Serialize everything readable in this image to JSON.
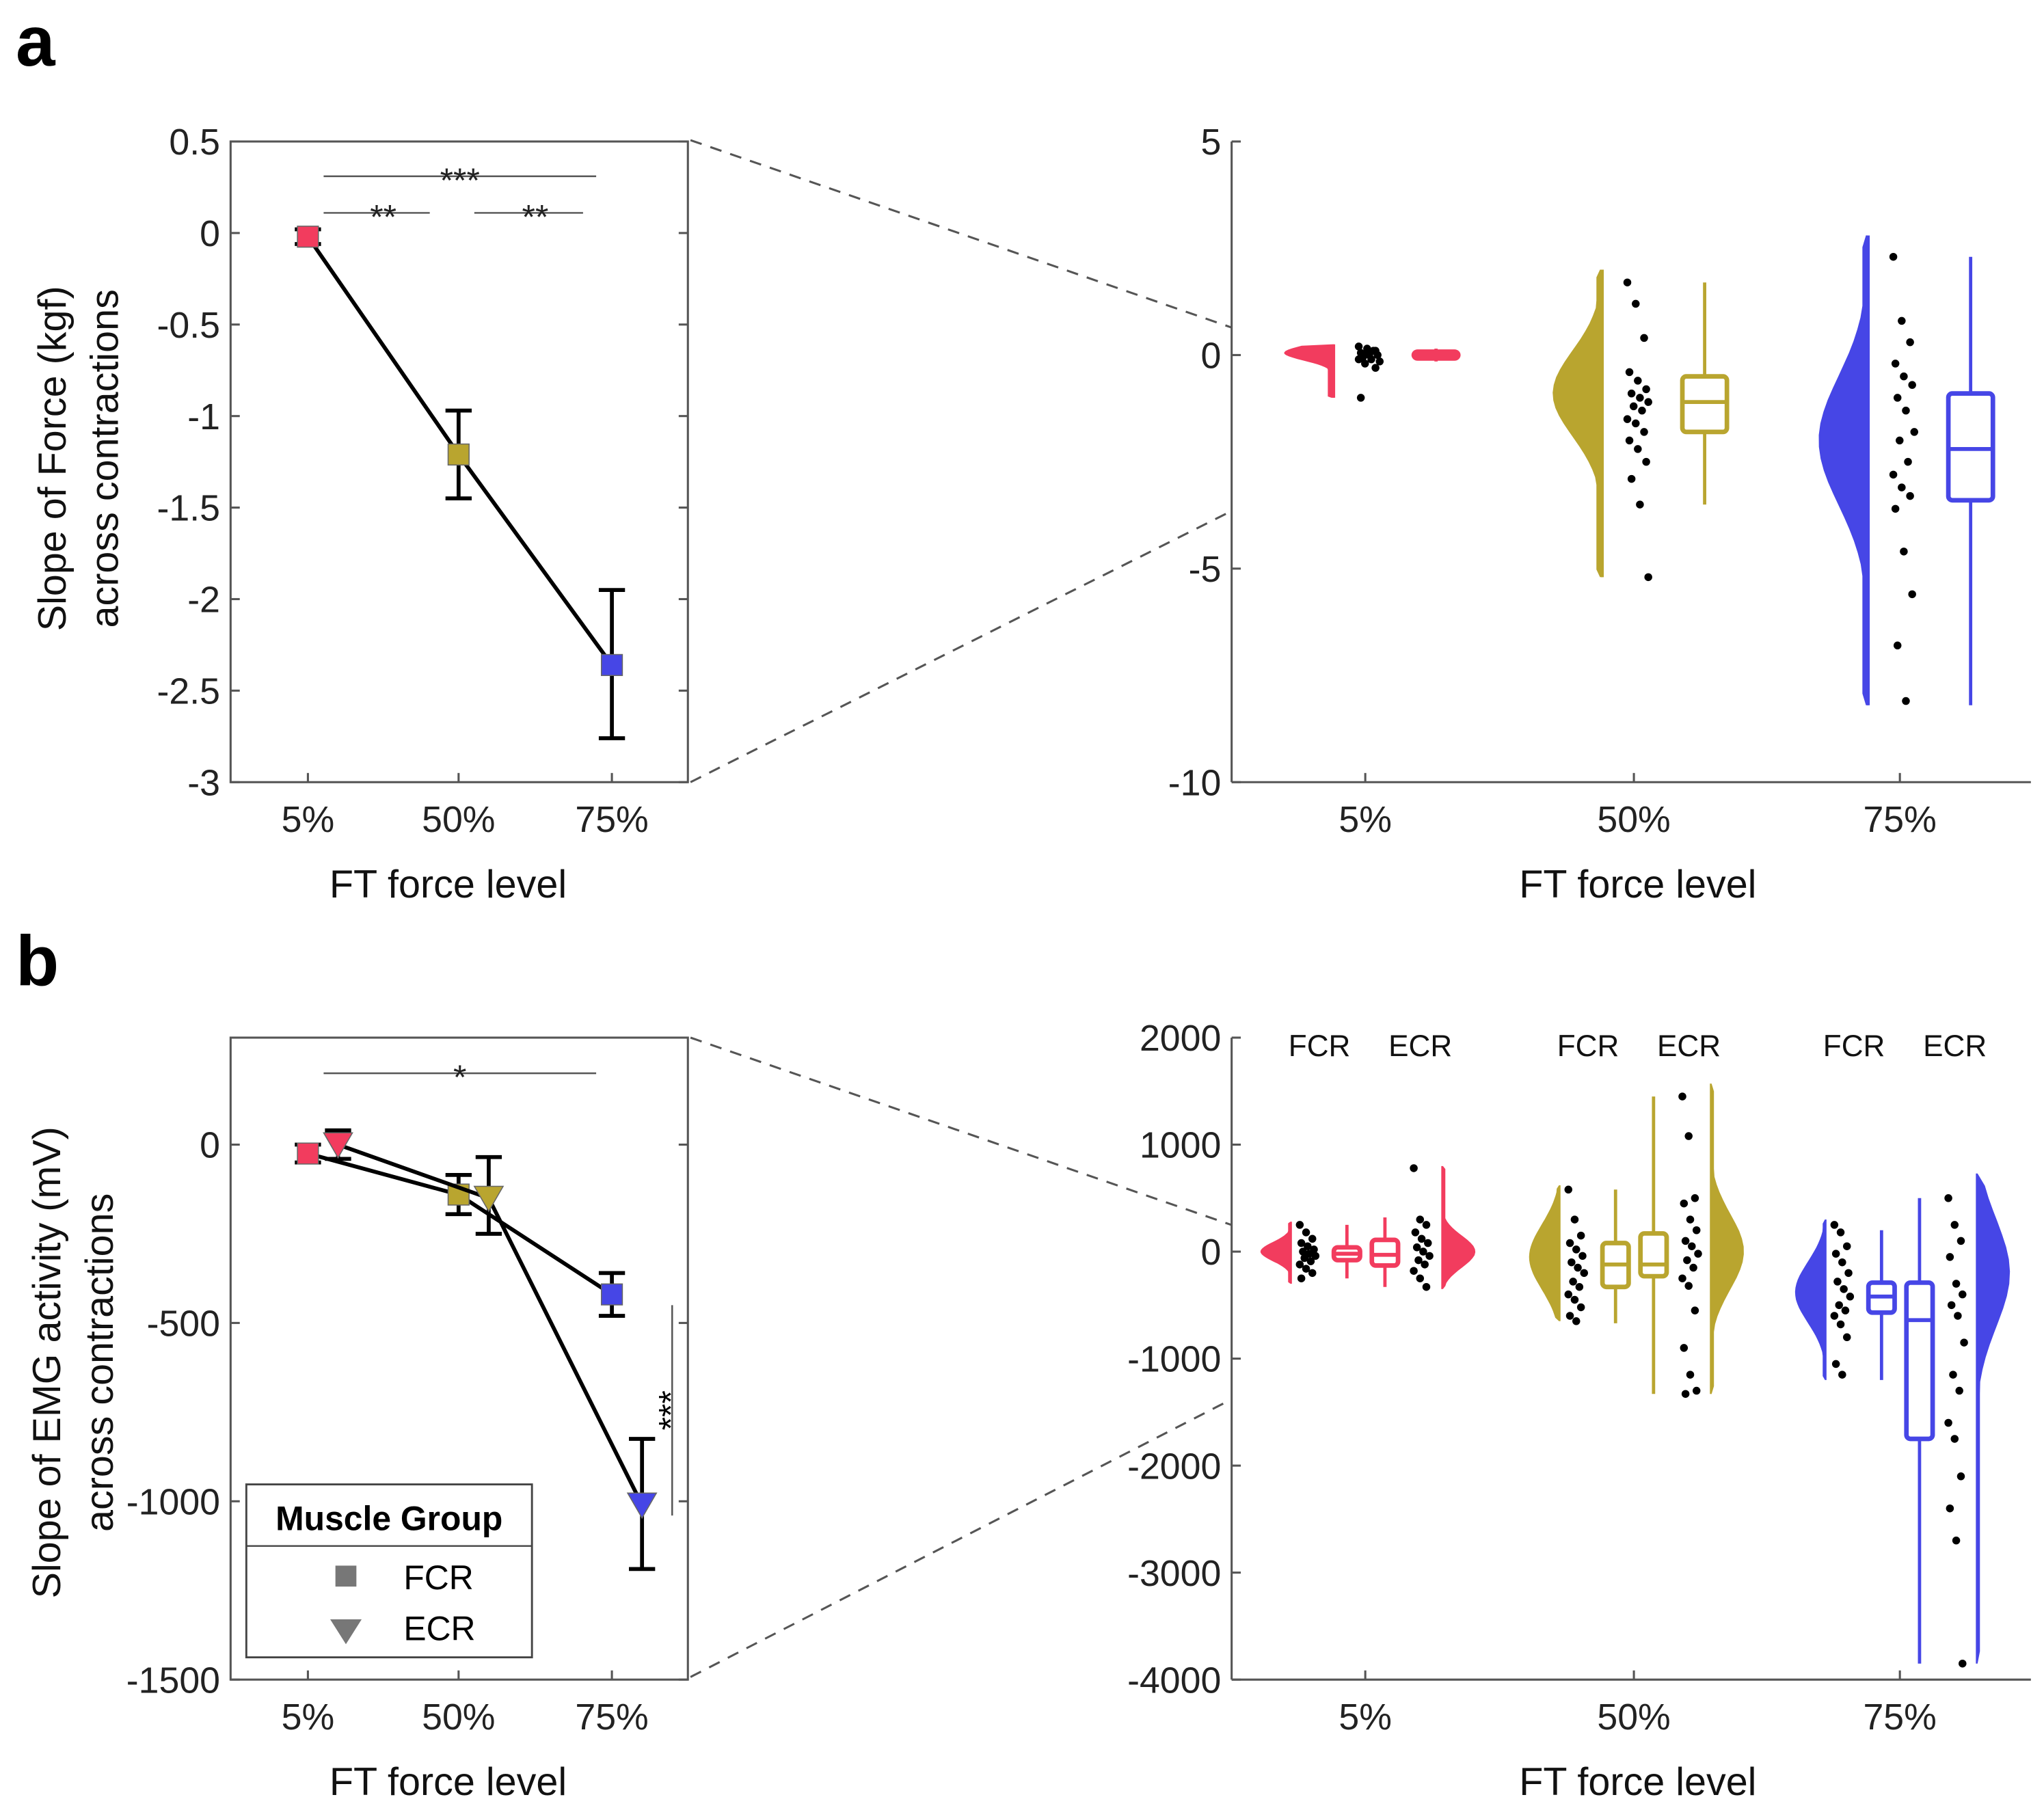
{
  "panels": {
    "a": "a",
    "b": "b"
  },
  "colors": {
    "5%": "#f23c5e",
    "50%": "#b9a52f",
    "75%": "#4646e6",
    "line": "#000000",
    "axis": "#555555"
  },
  "chart_data": [
    {
      "id": "a-left",
      "type": "line",
      "ylabel": [
        "Slope of Force (kgf)",
        "across contractions"
      ],
      "xlabel": "FT force level",
      "categories": [
        "5%",
        "50%",
        "75%"
      ],
      "ylim": [
        -3,
        0.5
      ],
      "yticks": [
        0.5,
        0,
        -0.5,
        -1,
        -1.5,
        -2,
        -2.5,
        -3
      ],
      "ytick_labels": [
        "0.5",
        "0",
        "-0.5",
        "-1",
        "-1.5",
        "-2",
        "-2.5",
        "-3"
      ],
      "series": [
        {
          "name": "Force",
          "marker": "square",
          "values": [
            -0.02,
            -1.21,
            -2.36
          ],
          "err_low": [
            -0.06,
            -1.45,
            -2.76
          ],
          "err_high": [
            0.02,
            -0.97,
            -1.95
          ]
        }
      ],
      "significance": [
        {
          "from": 0,
          "to": 2,
          "y": 0.31,
          "label": "***"
        },
        {
          "from": 0,
          "to": 1,
          "y": 0.11,
          "label": "**"
        },
        {
          "from": 1,
          "to": 2,
          "y": 0.11,
          "label": "**"
        }
      ]
    },
    {
      "id": "a-right",
      "type": "raincloud",
      "xlabel": "FT force level",
      "categories": [
        "5%",
        "50%",
        "75%"
      ],
      "ylim": [
        -10,
        5
      ],
      "yticks": [
        5,
        0,
        -5,
        -10
      ],
      "ytick_labels": [
        "5",
        "0",
        "-5",
        "-10"
      ],
      "groups": [
        {
          "cat": 0,
          "violin": [
            -1.0,
            0.25,
            0.05,
            0.18
          ],
          "box": {
            "min": -0.15,
            "q1": -0.08,
            "median": 0,
            "q3": 0.08,
            "max": 0.15
          },
          "points": [
            0.2,
            0.15,
            0.1,
            0.05,
            0,
            0,
            -0.05,
            -0.1,
            -0.15,
            -0.2,
            0.1,
            -0.1,
            0.05,
            -0.3,
            -1.0
          ]
        },
        {
          "cat": 1,
          "violin": [
            -5.2,
            2.0,
            -0.9,
            1.0
          ],
          "box": {
            "min": -3.5,
            "q1": -1.8,
            "median": -1.1,
            "q3": -0.5,
            "max": 1.7
          },
          "points": [
            1.7,
            1.2,
            0.4,
            -0.4,
            -0.6,
            -0.8,
            -0.9,
            -1.0,
            -1.1,
            -1.2,
            -1.3,
            -1.5,
            -1.6,
            -1.8,
            -2.0,
            -2.2,
            -2.5,
            -2.9,
            -3.5,
            -5.2
          ]
        },
        {
          "cat": 2,
          "violin": [
            -8.2,
            2.8,
            -2.0,
            1.5
          ],
          "box": {
            "min": -8.2,
            "q1": -3.4,
            "median": -2.2,
            "q3": -0.9,
            "max": 2.3
          },
          "points": [
            2.3,
            0.8,
            0.3,
            -0.2,
            -0.5,
            -0.7,
            -1.0,
            -1.3,
            -1.8,
            -2.0,
            -2.5,
            -2.8,
            -3.1,
            -3.3,
            -3.6,
            -4.6,
            -5.6,
            -6.8,
            -8.1
          ]
        }
      ]
    },
    {
      "id": "b-left",
      "type": "line",
      "ylabel": [
        "Slope of EMG activity (mV)",
        "across contractions"
      ],
      "xlabel": "FT force level",
      "categories": [
        "5%",
        "50%",
        "75%"
      ],
      "ylim": [
        -1500,
        300
      ],
      "yticks": [
        0,
        -500,
        -1000,
        -1500
      ],
      "ytick_labels": [
        "0",
        "-500",
        "-1000",
        "-1500"
      ],
      "series": [
        {
          "name": "FCR",
          "marker": "square",
          "values": [
            -25,
            -140,
            -420
          ],
          "err_low": [
            -50,
            -195,
            -480
          ],
          "err_high": [
            0,
            -85,
            -360
          ]
        },
        {
          "name": "ECR",
          "marker": "triangle",
          "values": [
            0,
            -150,
            -1010
          ],
          "err_low": [
            -40,
            -250,
            -1190
          ],
          "err_high": [
            40,
            -35,
            -825
          ]
        }
      ],
      "legend": {
        "title": "Muscle Group",
        "entries": [
          "FCR",
          "ECR"
        ],
        "placement": "bottom-left"
      },
      "significance": [
        {
          "from": 0,
          "to": 2,
          "y": 200,
          "label": "*"
        },
        {
          "vertical": true,
          "y_from": -450,
          "y_to": -1040,
          "label": "***"
        }
      ]
    },
    {
      "id": "b-right",
      "type": "raincloud",
      "xlabel": "FT force level",
      "categories": [
        "5%",
        "50%",
        "75%"
      ],
      "group_labels": [
        "FCR",
        "ECR"
      ],
      "ylim": [
        -4000,
        2000
      ],
      "yticks": [
        2000,
        1000,
        0,
        -1000,
        -2000,
        -3000,
        -4000
      ],
      "ytick_labels": [
        "2000",
        "1000",
        "0",
        "-1000",
        "-2000",
        "-3000",
        "-4000"
      ],
      "groups": [
        {
          "cat": 0,
          "muscle": "FCR",
          "violin": [
            -300,
            280,
            0,
            90
          ],
          "box": {
            "min": -250,
            "q1": -80,
            "median": -20,
            "q3": 40,
            "max": 250
          },
          "points": [
            250,
            180,
            120,
            80,
            50,
            20,
            0,
            -20,
            -40,
            -60,
            -90,
            -120,
            -160,
            -200,
            -250
          ]
        },
        {
          "cat": 0,
          "muscle": "ECR",
          "violin": [
            -350,
            800,
            0,
            150
          ],
          "box": {
            "min": -330,
            "q1": -130,
            "median": -30,
            "q3": 110,
            "max": 320
          },
          "points": [
            780,
            300,
            250,
            180,
            120,
            80,
            40,
            0,
            -40,
            -80,
            -120,
            -180,
            -250,
            -330
          ]
        },
        {
          "cat": 1,
          "muscle": "FCR",
          "violin": [
            -650,
            620,
            -50,
            300
          ],
          "box": {
            "min": -670,
            "q1": -330,
            "median": -120,
            "q3": 80,
            "max": 580
          },
          "points": [
            580,
            300,
            150,
            80,
            20,
            -40,
            -100,
            -150,
            -200,
            -280,
            -330,
            -400,
            -450,
            -520,
            -600,
            -650
          ]
        },
        {
          "cat": 1,
          "muscle": "ECR",
          "violin": [
            -1330,
            1570,
            0,
            350
          ],
          "box": {
            "min": -1330,
            "q1": -230,
            "median": -120,
            "q3": 170,
            "max": 1450
          },
          "points": [
            1450,
            1080,
            500,
            450,
            300,
            200,
            100,
            50,
            -20,
            -80,
            -150,
            -250,
            -320,
            -550,
            -900,
            -1150,
            -1300,
            -1330
          ]
        },
        {
          "cat": 2,
          "muscle": "FCR",
          "violin": [
            -1200,
            300,
            -380,
            280
          ],
          "box": {
            "min": -1200,
            "q1": -570,
            "median": -420,
            "q3": -290,
            "max": 200
          },
          "points": [
            250,
            180,
            50,
            -20,
            -100,
            -200,
            -280,
            -350,
            -420,
            -500,
            -550,
            -600,
            -680,
            -800,
            -1050,
            -1150
          ]
        },
        {
          "cat": 2,
          "muscle": "ECR",
          "violin": [
            -3850,
            730,
            -200,
            500
          ],
          "box": {
            "min": -3850,
            "q1": -1750,
            "median": -640,
            "q3": -290,
            "max": 500
          },
          "points": [
            500,
            250,
            100,
            -50,
            -300,
            -400,
            -500,
            -600,
            -850,
            -1150,
            -1300,
            -1600,
            -1750,
            -2100,
            -2400,
            -2700,
            -3850
          ]
        }
      ]
    }
  ]
}
